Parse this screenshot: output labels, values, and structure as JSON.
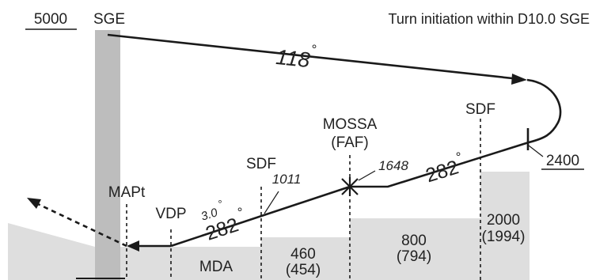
{
  "header": {
    "altitude": "5000",
    "fix": "SGE",
    "note": "Turn initiation within D10.0 SGE"
  },
  "outbound": {
    "course": "118",
    "degree": "°"
  },
  "turn": {
    "altitude": "2400"
  },
  "inbound": {
    "course": "282",
    "degree": "°"
  },
  "final": {
    "course": "282",
    "degree": "°",
    "glidepath": "3.0",
    "glidepath_degree": "°"
  },
  "fixes": {
    "sdf_outer": "SDF",
    "faf_line1": "MOSSA",
    "faf_line2": "(FAF)",
    "faf_altitude": "1648",
    "sdf_inner": "SDF",
    "sdf_inner_altitude": "1011",
    "vdp": "VDP",
    "mapt": "MAPt"
  },
  "minimums": {
    "mda": "MDA",
    "seg1_alt": "460",
    "seg1_height": "(454)",
    "seg2_alt": "800",
    "seg2_height": "(794)",
    "seg3_alt": "2000",
    "seg3_height": "(1994)"
  },
  "colors": {
    "terrain": "#dedede",
    "track": "#1a1a1a",
    "mast": "#bdbdbd"
  }
}
